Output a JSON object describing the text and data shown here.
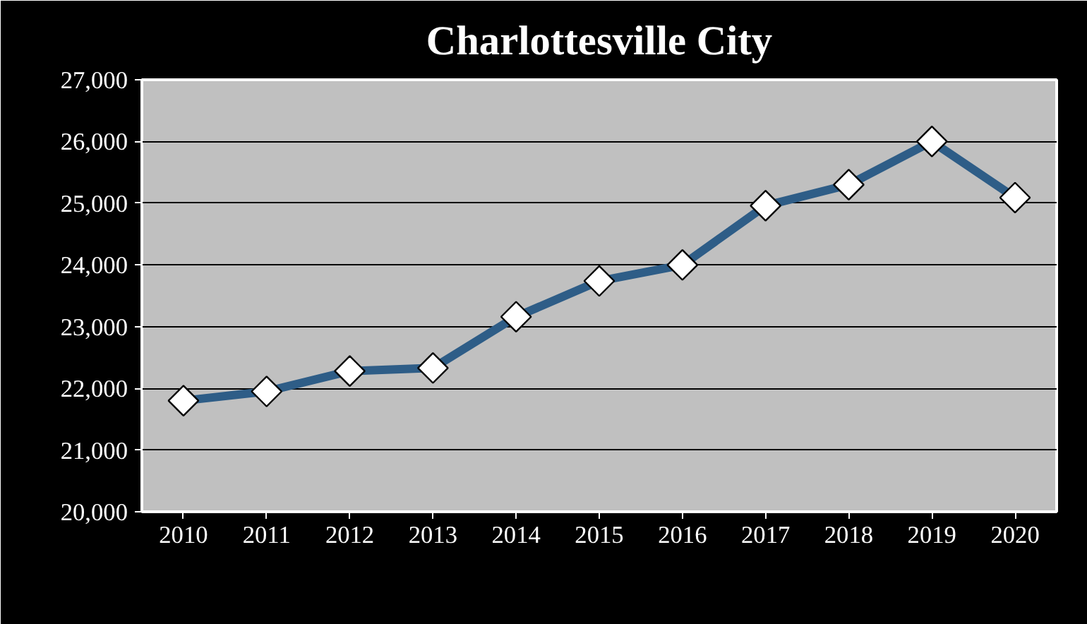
{
  "chart_data": {
    "type": "line",
    "title": "Charlottesville City",
    "categories": [
      "2010",
      "2011",
      "2012",
      "2013",
      "2014",
      "2015",
      "2016",
      "2017",
      "2018",
      "2019",
      "2020"
    ],
    "series": [
      {
        "color": "#2e5d87",
        "values": [
          21800,
          21950,
          22280,
          22330,
          23160,
          23740,
          24000,
          24960,
          25300,
          26000,
          25090
        ]
      }
    ],
    "ylim": [
      20000,
      27000
    ],
    "yticks": [
      {
        "value": 20000,
        "label": "20,000"
      },
      {
        "value": 21000,
        "label": "21,000"
      },
      {
        "value": 22000,
        "label": "22,000"
      },
      {
        "value": 23000,
        "label": "23,000"
      },
      {
        "value": 24000,
        "label": "24,000"
      },
      {
        "value": 25000,
        "label": "25,000"
      },
      {
        "value": 26000,
        "label": "26,000"
      },
      {
        "value": 27000,
        "label": "27,000"
      }
    ],
    "grid": "y",
    "marker": "diamond",
    "line_style": "solid"
  }
}
